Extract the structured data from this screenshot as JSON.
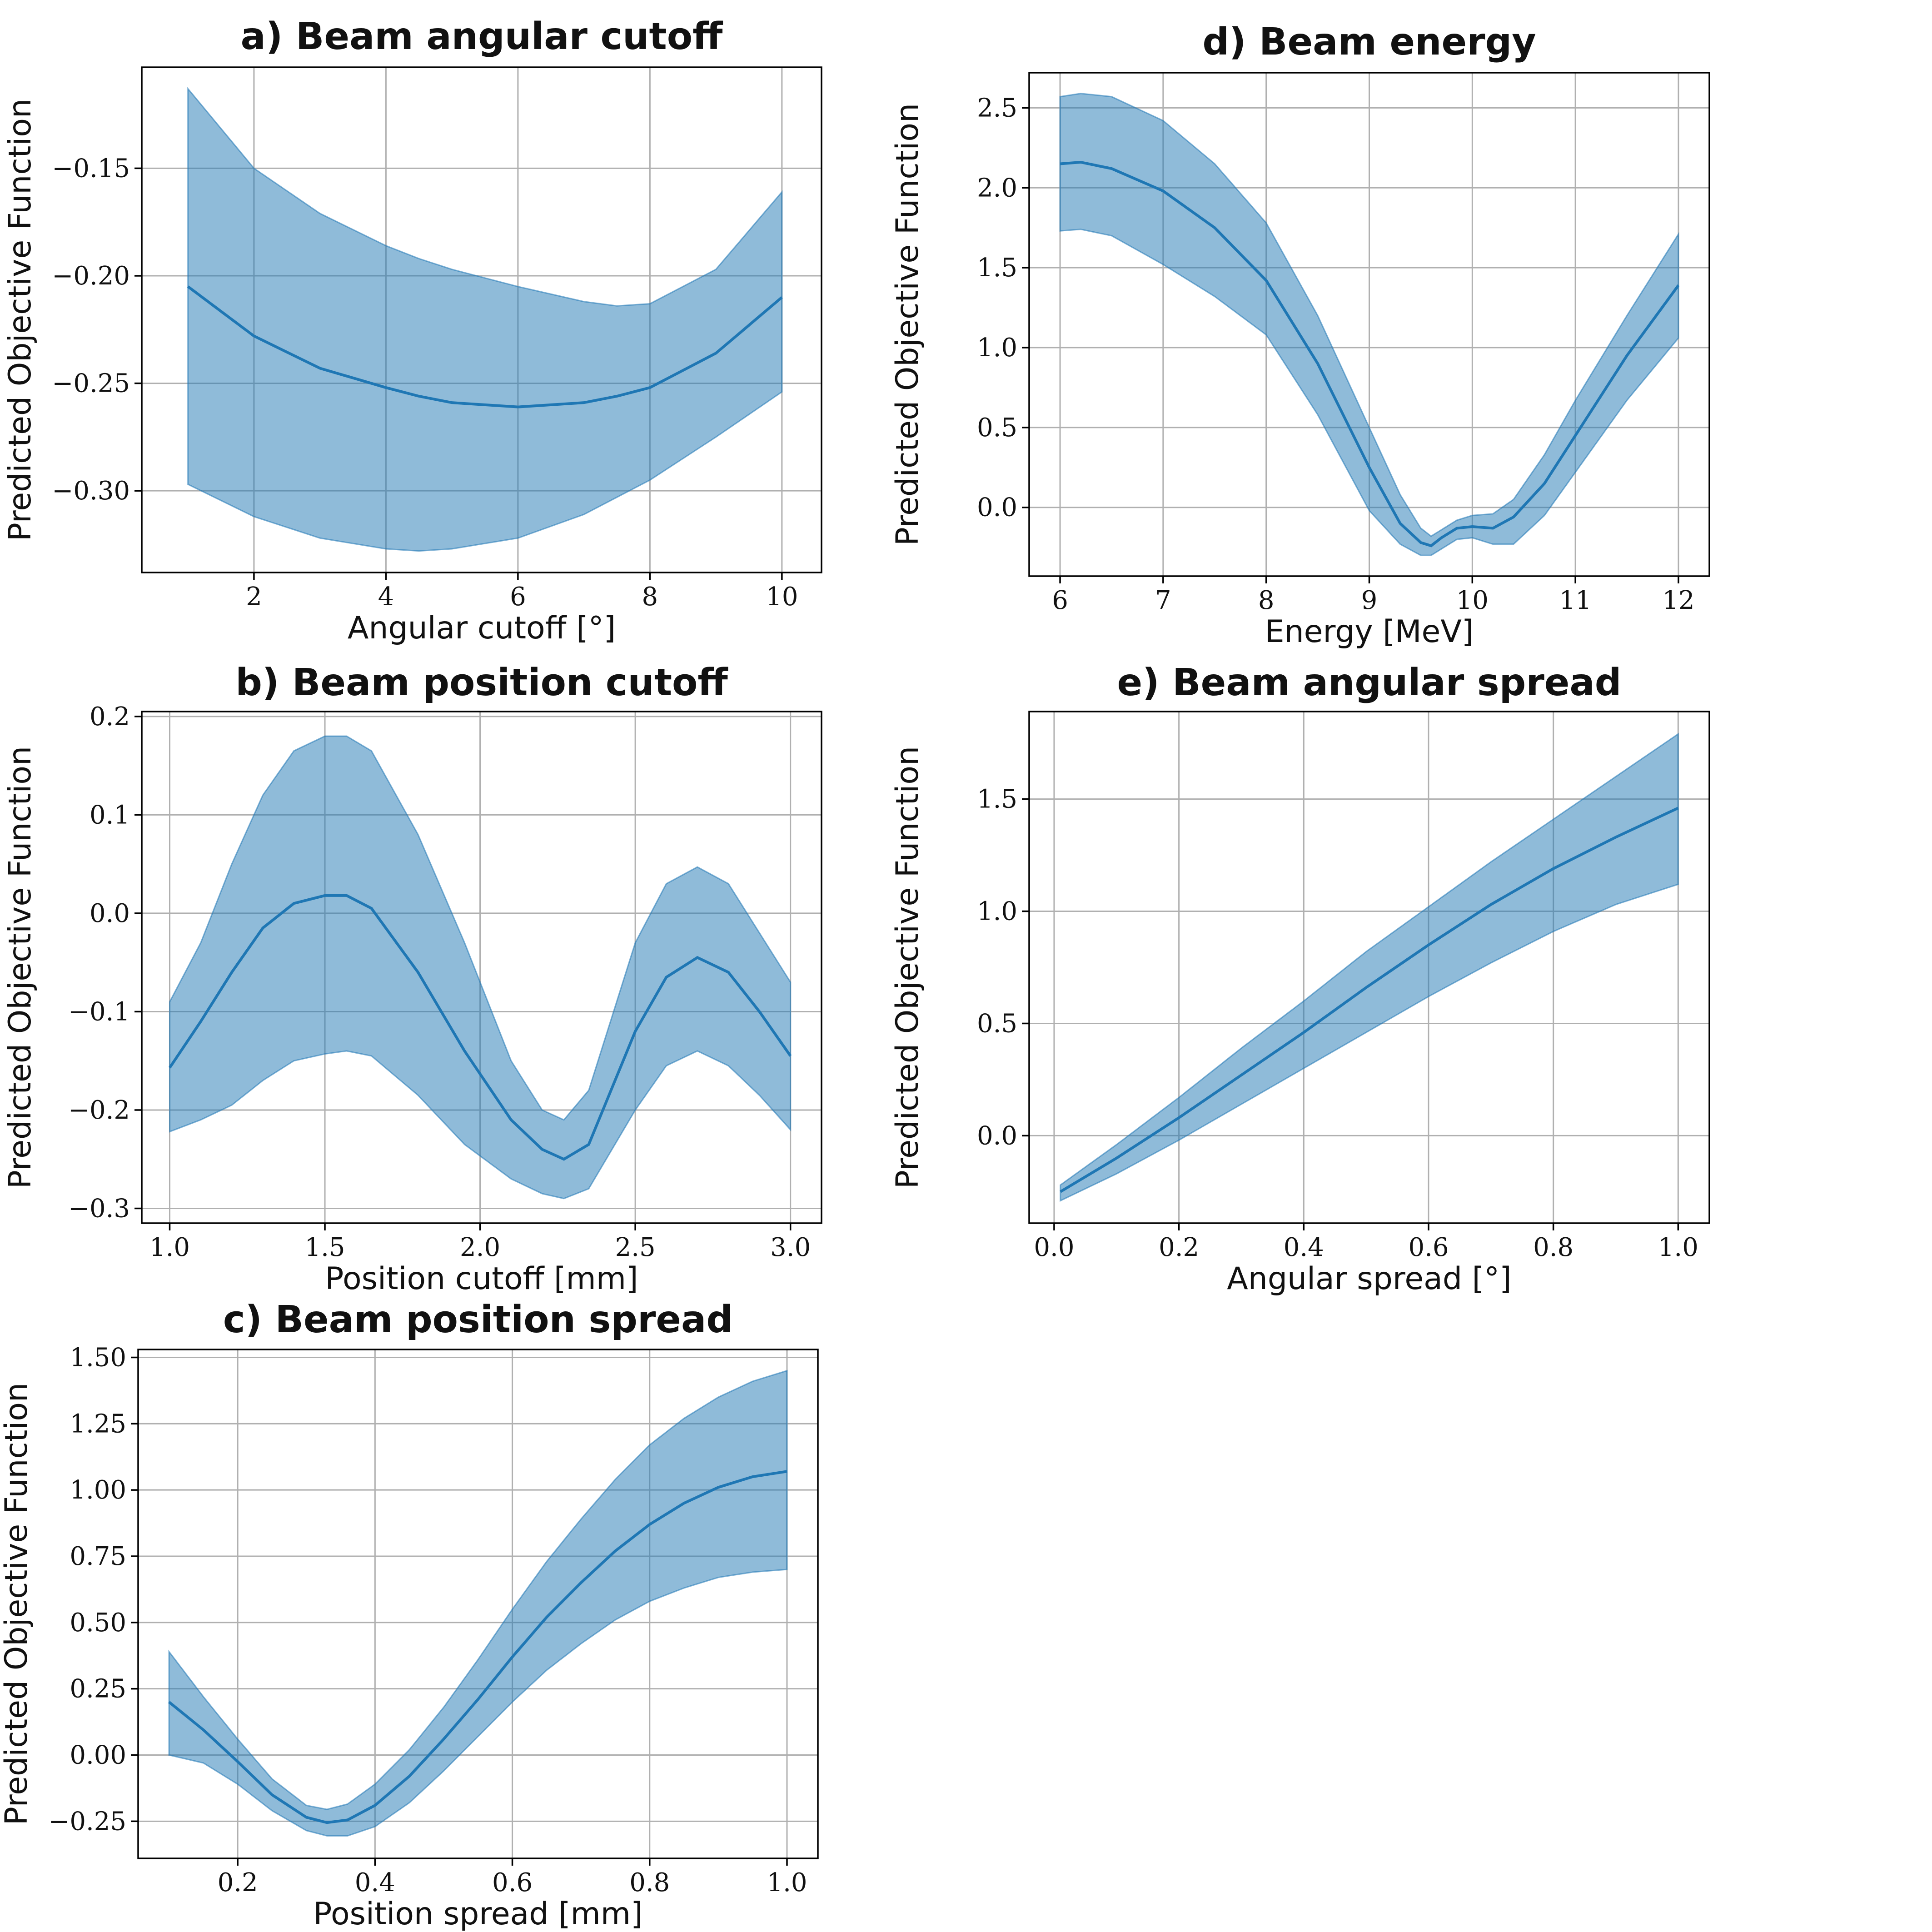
{
  "chart_data": [
    {
      "id": "a",
      "type": "line",
      "title": "a) Beam angular cutoff",
      "xlabel": "Angular cutoff [°]",
      "ylabel": "Predicted Objective Function",
      "xlim": [
        0.3,
        10.6
      ],
      "ylim": [
        -0.338,
        -0.103
      ],
      "xticks": [
        2,
        4,
        6,
        8,
        10
      ],
      "xtick_labels": [
        "2",
        "4",
        "6",
        "8",
        "10"
      ],
      "yticks": [
        -0.15,
        -0.2,
        -0.25,
        -0.3
      ],
      "ytick_labels": [
        "−0.15",
        "−0.20",
        "−0.25",
        "−0.30"
      ],
      "grid": true,
      "series": [
        {
          "x": [
            1,
            2,
            3,
            4,
            4.5,
            5,
            6,
            7,
            7.5,
            8,
            9,
            10
          ],
          "mean": [
            -0.205,
            -0.228,
            -0.243,
            -0.252,
            -0.256,
            -0.259,
            -0.261,
            -0.259,
            -0.256,
            -0.252,
            -0.236,
            -0.21
          ],
          "upper": [
            -0.113,
            -0.15,
            -0.171,
            -0.186,
            -0.192,
            -0.197,
            -0.205,
            -0.212,
            -0.214,
            -0.213,
            -0.197,
            -0.161
          ],
          "lower": [
            -0.297,
            -0.312,
            -0.322,
            -0.327,
            -0.328,
            -0.327,
            -0.322,
            -0.311,
            -0.303,
            -0.295,
            -0.275,
            -0.254
          ]
        }
      ]
    },
    {
      "id": "b",
      "type": "line",
      "title": "b) Beam position cutoff",
      "xlabel": "Position cutoff [mm]",
      "ylabel": "Predicted Objective Function",
      "xlim": [
        0.91,
        3.1
      ],
      "ylim": [
        -0.315,
        0.205
      ],
      "xticks": [
        1.0,
        1.5,
        2.0,
        2.5,
        3.0
      ],
      "xtick_labels": [
        "1.0",
        "1.5",
        "2.0",
        "2.5",
        "3.0"
      ],
      "yticks": [
        0.2,
        0.1,
        0.0,
        -0.1,
        -0.2,
        -0.3
      ],
      "ytick_labels": [
        "0.2",
        "0.1",
        "0.0",
        "−0.1",
        "−0.2",
        "−0.3"
      ],
      "grid": true,
      "series": [
        {
          "x": [
            1.0,
            1.1,
            1.2,
            1.3,
            1.4,
            1.5,
            1.57,
            1.65,
            1.8,
            1.95,
            2.1,
            2.2,
            2.27,
            2.35,
            2.5,
            2.6,
            2.7,
            2.8,
            2.9,
            3.0
          ],
          "mean": [
            -0.157,
            -0.11,
            -0.06,
            -0.015,
            0.01,
            0.018,
            0.018,
            0.005,
            -0.06,
            -0.14,
            -0.21,
            -0.24,
            -0.25,
            -0.235,
            -0.12,
            -0.065,
            -0.045,
            -0.06,
            -0.1,
            -0.145
          ],
          "upper": [
            -0.09,
            -0.03,
            0.05,
            0.12,
            0.165,
            0.18,
            0.18,
            0.165,
            0.08,
            -0.03,
            -0.15,
            -0.2,
            -0.21,
            -0.18,
            -0.03,
            0.03,
            0.047,
            0.03,
            -0.02,
            -0.07
          ],
          "lower": [
            -0.222,
            -0.21,
            -0.195,
            -0.17,
            -0.15,
            -0.143,
            -0.14,
            -0.145,
            -0.185,
            -0.235,
            -0.27,
            -0.285,
            -0.29,
            -0.28,
            -0.2,
            -0.155,
            -0.14,
            -0.155,
            -0.185,
            -0.22
          ]
        }
      ]
    },
    {
      "id": "c",
      "type": "line",
      "title": "c) Beam position spread",
      "xlabel": "Position spread [mm]",
      "ylabel": "Predicted Objective Function",
      "xlim": [
        0.055,
        1.045
      ],
      "ylim": [
        -0.39,
        1.53
      ],
      "xticks": [
        0.2,
        0.4,
        0.6,
        0.8,
        1.0
      ],
      "xtick_labels": [
        "0.2",
        "0.4",
        "0.6",
        "0.8",
        "1.0"
      ],
      "yticks": [
        1.5,
        1.25,
        1.0,
        0.75,
        0.5,
        0.25,
        0.0,
        -0.25
      ],
      "ytick_labels": [
        "1.50",
        "1.25",
        "1.00",
        "0.75",
        "0.50",
        "0.25",
        "0.00",
        "−0.25"
      ],
      "grid": true,
      "series": [
        {
          "x": [
            0.1,
            0.15,
            0.2,
            0.25,
            0.3,
            0.33,
            0.36,
            0.4,
            0.45,
            0.5,
            0.55,
            0.6,
            0.65,
            0.7,
            0.75,
            0.8,
            0.85,
            0.9,
            0.95,
            1.0
          ],
          "mean": [
            0.2,
            0.095,
            -0.025,
            -0.15,
            -0.235,
            -0.255,
            -0.245,
            -0.19,
            -0.08,
            0.06,
            0.21,
            0.37,
            0.52,
            0.65,
            0.77,
            0.87,
            0.95,
            1.01,
            1.05,
            1.07
          ],
          "upper": [
            0.39,
            0.22,
            0.06,
            -0.09,
            -0.19,
            -0.205,
            -0.185,
            -0.11,
            0.02,
            0.18,
            0.36,
            0.55,
            0.73,
            0.89,
            1.04,
            1.17,
            1.27,
            1.35,
            1.41,
            1.45
          ],
          "lower": [
            0.0,
            -0.03,
            -0.11,
            -0.21,
            -0.285,
            -0.305,
            -0.305,
            -0.27,
            -0.18,
            -0.06,
            0.07,
            0.2,
            0.32,
            0.42,
            0.51,
            0.58,
            0.63,
            0.67,
            0.69,
            0.7
          ]
        }
      ]
    },
    {
      "id": "d",
      "type": "line",
      "title": "d) Beam energy",
      "xlabel": "Energy [MeV]",
      "ylabel": "Predicted Objective Function",
      "xlim": [
        5.7,
        12.3
      ],
      "ylim": [
        -0.43,
        2.72
      ],
      "xticks": [
        6,
        7,
        8,
        9,
        10,
        11,
        12
      ],
      "xtick_labels": [
        "6",
        "7",
        "8",
        "9",
        "10",
        "11",
        "12"
      ],
      "yticks": [
        2.5,
        2.0,
        1.5,
        1.0,
        0.5,
        0.0
      ],
      "ytick_labels": [
        "2.5",
        "2.0",
        "1.5",
        "1.0",
        "0.5",
        "0.0"
      ],
      "grid": true,
      "series": [
        {
          "x": [
            6.0,
            6.2,
            6.5,
            7.0,
            7.5,
            8.0,
            8.5,
            9.0,
            9.3,
            9.5,
            9.6,
            9.7,
            9.85,
            10.0,
            10.2,
            10.4,
            10.7,
            11.0,
            11.5,
            12.0
          ],
          "mean": [
            2.15,
            2.16,
            2.12,
            1.98,
            1.75,
            1.42,
            0.9,
            0.25,
            -0.1,
            -0.22,
            -0.24,
            -0.19,
            -0.13,
            -0.12,
            -0.13,
            -0.06,
            0.15,
            0.45,
            0.95,
            1.39
          ],
          "upper": [
            2.57,
            2.59,
            2.57,
            2.42,
            2.15,
            1.78,
            1.2,
            0.5,
            0.08,
            -0.13,
            -0.18,
            -0.14,
            -0.08,
            -0.05,
            -0.04,
            0.05,
            0.33,
            0.67,
            1.2,
            1.71
          ],
          "lower": [
            1.73,
            1.74,
            1.7,
            1.52,
            1.32,
            1.08,
            0.58,
            -0.02,
            -0.23,
            -0.3,
            -0.3,
            -0.26,
            -0.2,
            -0.19,
            -0.23,
            -0.23,
            -0.05,
            0.22,
            0.67,
            1.06
          ]
        }
      ]
    },
    {
      "id": "e",
      "type": "line",
      "title": "e) Beam angular spread",
      "xlabel": "Angular spread [°]",
      "ylabel": "Predicted Objective Function",
      "xlim": [
        -0.04,
        1.05
      ],
      "ylim": [
        -0.39,
        1.89
      ],
      "xticks": [
        0.0,
        0.2,
        0.4,
        0.6,
        0.8,
        1.0
      ],
      "xtick_labels": [
        "0.0",
        "0.2",
        "0.4",
        "0.6",
        "0.8",
        "1.0"
      ],
      "yticks": [
        1.5,
        1.0,
        0.5,
        0.0
      ],
      "ytick_labels": [
        "1.5",
        "1.0",
        "0.5",
        "0.0"
      ],
      "grid": true,
      "series": [
        {
          "x": [
            0.01,
            0.1,
            0.2,
            0.3,
            0.4,
            0.5,
            0.6,
            0.7,
            0.8,
            0.9,
            1.0
          ],
          "mean": [
            -0.25,
            -0.1,
            0.08,
            0.27,
            0.46,
            0.66,
            0.85,
            1.03,
            1.19,
            1.33,
            1.46
          ],
          "upper": [
            -0.22,
            -0.04,
            0.17,
            0.39,
            0.6,
            0.82,
            1.02,
            1.22,
            1.41,
            1.6,
            1.79
          ],
          "lower": [
            -0.29,
            -0.17,
            -0.02,
            0.14,
            0.3,
            0.46,
            0.62,
            0.77,
            0.91,
            1.03,
            1.12
          ]
        }
      ]
    }
  ]
}
